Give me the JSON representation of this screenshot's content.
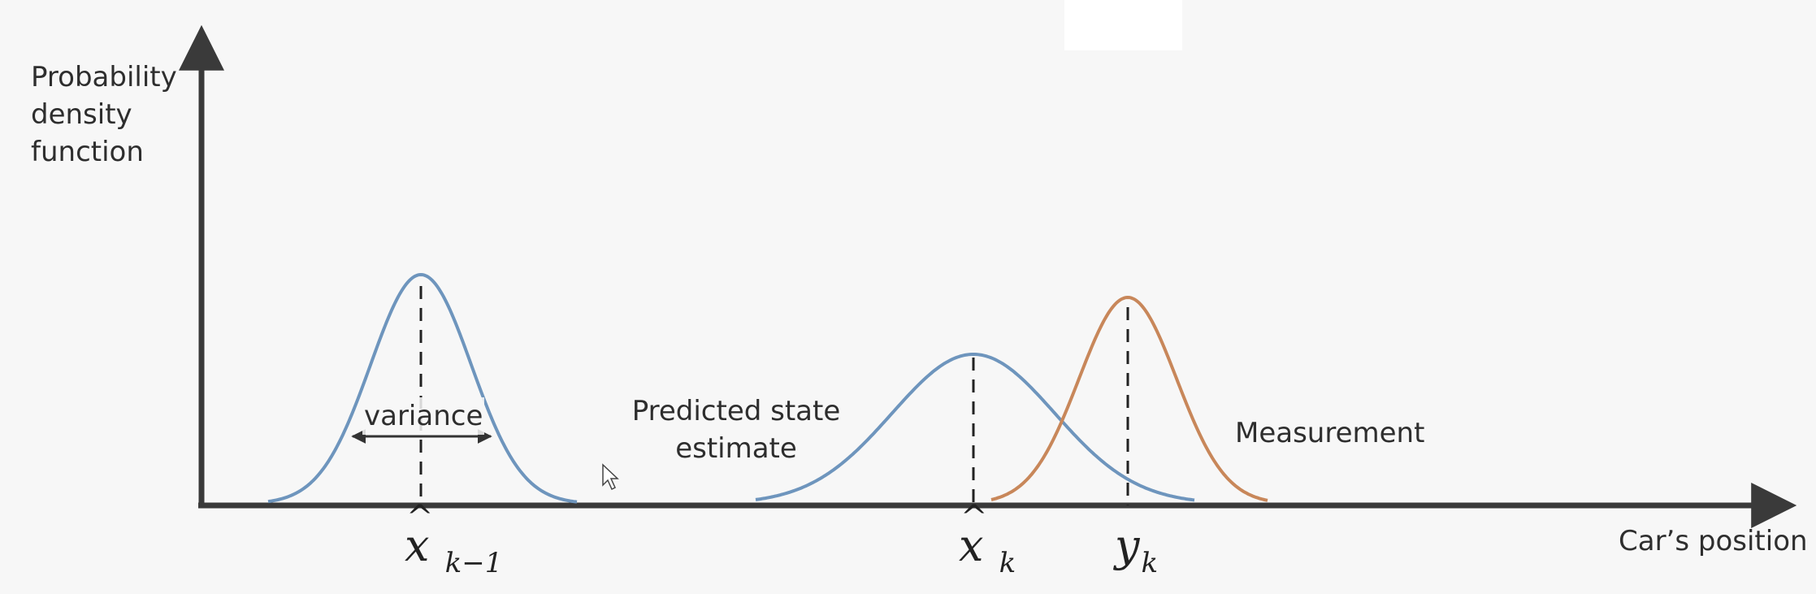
{
  "axes": {
    "y_label": [
      "Probability",
      "density",
      "function"
    ],
    "x_label": "Car’s position ."
  },
  "annotations": {
    "variance": "variance",
    "predicted": [
      "Predicted state",
      "estimate"
    ],
    "measurement": "Measurement"
  },
  "symbols": {
    "previous_estimate": {
      "base": "x",
      "hat": "^",
      "sub": "k−1"
    },
    "predicted_estimate": {
      "base": "x",
      "hat": "^",
      "sub": "k"
    },
    "measurement": {
      "base": "y",
      "hat": "",
      "sub": "k"
    }
  },
  "colors": {
    "estimate_curve": "#6e95bd",
    "measurement_curve": "#c8875a",
    "axes": "#3a3a3a"
  }
}
